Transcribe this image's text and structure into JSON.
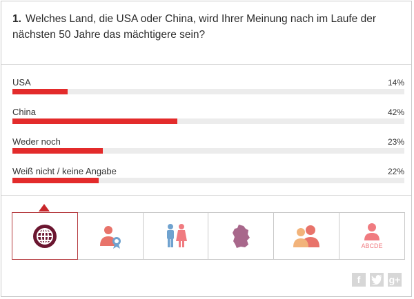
{
  "question": {
    "number": "1.",
    "text": "Welches Land, die USA oder China, wird Ihrer Meinung nach im Laufe der nächsten 50 Jahre das mächtigere sein?"
  },
  "answers": [
    {
      "label": "USA",
      "percent": "14%",
      "value": 14
    },
    {
      "label": "China",
      "percent": "42%",
      "value": 42
    },
    {
      "label": "Weder noch",
      "percent": "23%",
      "value": 23
    },
    {
      "label": "Weiß nicht / keine Angabe",
      "percent": "22%",
      "value": 22
    }
  ],
  "filters": [
    {
      "icon": "globe-icon",
      "active": true
    },
    {
      "icon": "person-award-icon",
      "active": false
    },
    {
      "icon": "gender-icon",
      "active": false
    },
    {
      "icon": "germany-map-icon",
      "active": false
    },
    {
      "icon": "age-group-icon",
      "active": false
    },
    {
      "icon": "education-icon",
      "active": false,
      "text": "ABCDE"
    }
  ],
  "social": [
    {
      "icon": "facebook-icon",
      "glyph": "f"
    },
    {
      "icon": "twitter-icon",
      "glyph": ""
    },
    {
      "icon": "google-plus-icon",
      "glyph": "g+"
    }
  ],
  "colors": {
    "bar": "#e32b2b",
    "track": "#ececec",
    "active_border": "#b3363a",
    "globe": "#6b1630",
    "icon_red": "#e8736a",
    "icon_blue": "#6fa2cf",
    "icon_pink": "#f07b80",
    "map_purple": "#a8678b",
    "icon_orange": "#f2b37a"
  }
}
